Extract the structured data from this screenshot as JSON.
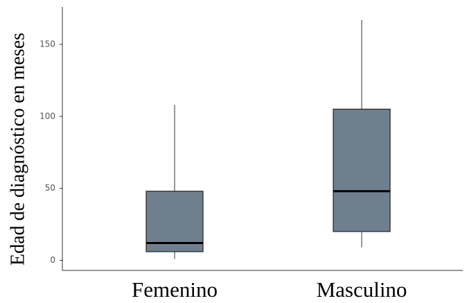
{
  "chart_data": {
    "type": "box",
    "y_label": "Edad de diagnóstico en meses",
    "categories": [
      "Femenino",
      "Masculino"
    ],
    "min": [
      1,
      9
    ],
    "q1": [
      6,
      20
    ],
    "median": [
      12,
      48
    ],
    "q3": [
      48,
      105
    ],
    "max": [
      108,
      167
    ],
    "color": "#6f7f8e",
    "ylim": [
      -7,
      176
    ],
    "yticks": [
      0,
      50,
      100,
      150
    ],
    "grid": false
  }
}
